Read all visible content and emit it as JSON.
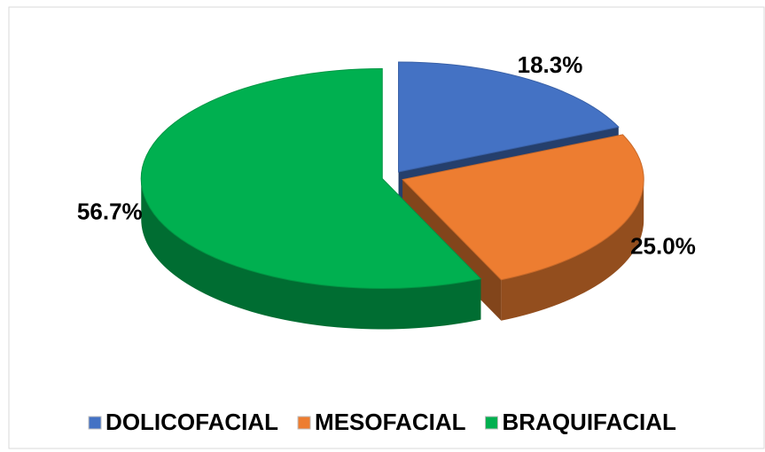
{
  "chart_data": {
    "type": "pie",
    "categories": [
      "DOLICOFACIAL",
      "MESOFACIAL",
      "BRAQUIFACIAL"
    ],
    "values": [
      18.3,
      25.0,
      56.7
    ],
    "value_labels": [
      "18.3%",
      "25.0%",
      "56.7%"
    ],
    "colors": [
      "#4472c4",
      "#ed7d31",
      "#00b050"
    ],
    "legend": "bottom"
  }
}
